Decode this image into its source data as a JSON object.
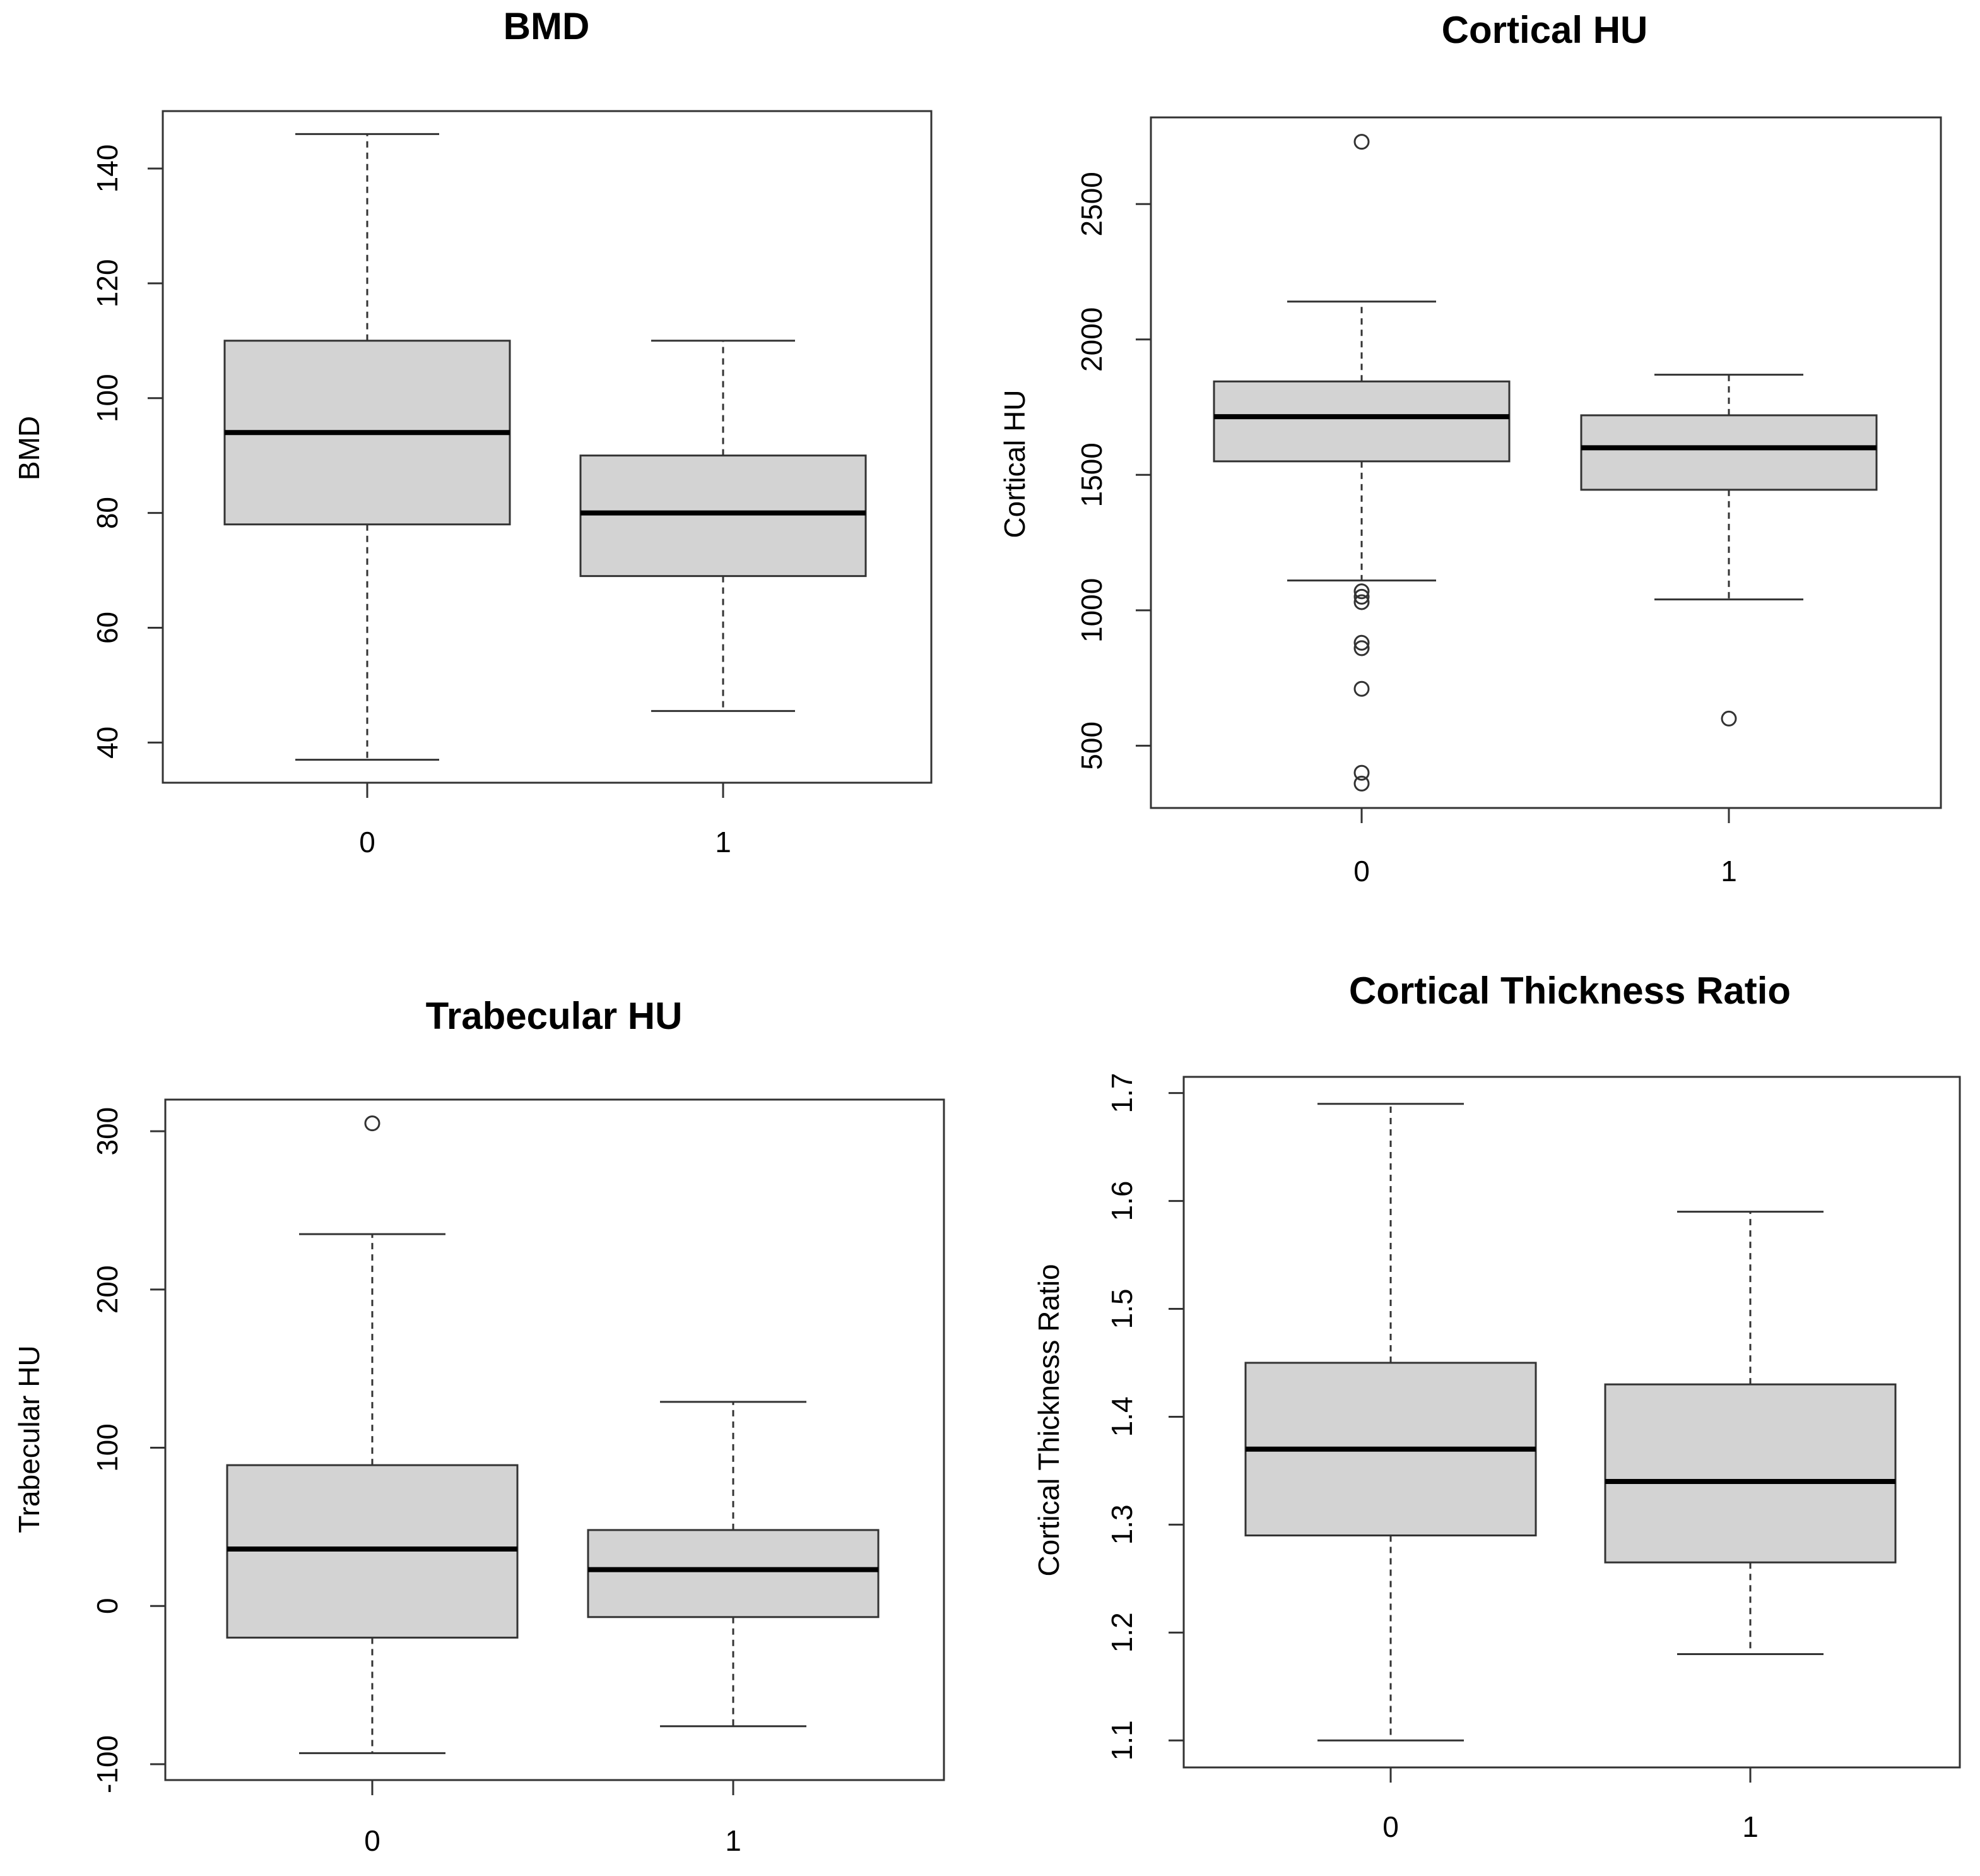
{
  "chart_data": [
    {
      "type": "boxplot",
      "title": "BMD",
      "ylabel": "BMD",
      "xlabel": "",
      "categories": [
        "0",
        "1"
      ],
      "ylim": [
        33,
        150
      ],
      "yticks": [
        40,
        60,
        80,
        100,
        120,
        140
      ],
      "groups": [
        {
          "name": "0",
          "min": 37,
          "q1": 78,
          "median": 94,
          "q3": 110,
          "max": 146,
          "outliers": []
        },
        {
          "name": "1",
          "min": 45.5,
          "q1": 69,
          "median": 80,
          "q3": 90,
          "max": 110,
          "outliers": []
        }
      ]
    },
    {
      "type": "boxplot",
      "title": "Cortical HU",
      "ylabel": "Cortical HU",
      "xlabel": "",
      "categories": [
        "0",
        "1"
      ],
      "ylim": [
        270,
        2820
      ],
      "yticks": [
        500,
        1000,
        1500,
        2000,
        2500
      ],
      "groups": [
        {
          "name": "0",
          "min": 1110,
          "q1": 1550,
          "median": 1715,
          "q3": 1845,
          "max": 2140,
          "outliers": [
            2730,
            1070,
            1050,
            1030,
            880,
            860,
            710,
            400,
            360
          ]
        },
        {
          "name": "1",
          "min": 1040,
          "q1": 1445,
          "median": 1600,
          "q3": 1720,
          "max": 1870,
          "outliers": [
            600
          ]
        }
      ]
    },
    {
      "type": "boxplot",
      "title": "Trabecular HU",
      "ylabel": "Trabecular HU",
      "xlabel": "",
      "categories": [
        "0",
        "1"
      ],
      "ylim": [
        -110,
        320
      ],
      "yticks": [
        -100,
        0,
        100,
        200,
        300
      ],
      "groups": [
        {
          "name": "0",
          "min": -93,
          "q1": -20,
          "median": 36,
          "q3": 89,
          "max": 235,
          "outliers": [
            305
          ]
        },
        {
          "name": "1",
          "min": -76,
          "q1": -7,
          "median": 23,
          "q3": 48,
          "max": 129,
          "outliers": []
        }
      ]
    },
    {
      "type": "boxplot",
      "title": "Cortical Thickness Ratio",
      "ylabel": "Cortical Thickness Ratio",
      "xlabel": "",
      "categories": [
        "0",
        "1"
      ],
      "ylim": [
        1.075,
        1.715
      ],
      "yticks": [
        "1.1",
        "1.2",
        "1.3",
        "1.4",
        "1.5",
        "1.6",
        "1.7"
      ],
      "groups": [
        {
          "name": "0",
          "min": 1.1,
          "q1": 1.29,
          "median": 1.37,
          "q3": 1.45,
          "max": 1.69,
          "outliers": []
        },
        {
          "name": "1",
          "min": 1.18,
          "q1": 1.265,
          "median": 1.34,
          "q3": 1.43,
          "max": 1.59,
          "outliers": []
        }
      ]
    }
  ]
}
